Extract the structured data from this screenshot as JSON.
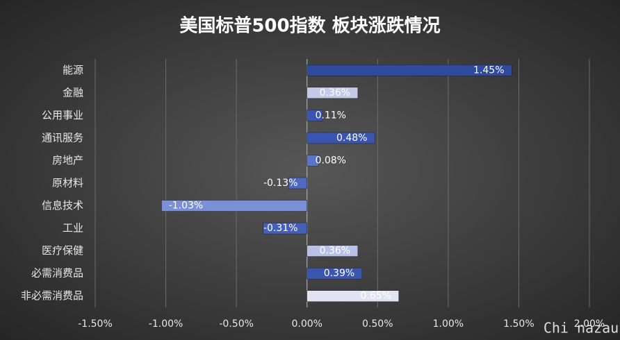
{
  "chart_data": {
    "type": "hbar",
    "title": "美国标普500指数 板块涨跌情况",
    "categories": [
      "能源",
      "金融",
      "公用事业",
      "通讯服务",
      "房地产",
      "原材料",
      "信息技术",
      "工业",
      "医疗保健",
      "必需消费品",
      "非必需消费品"
    ],
    "values": [
      1.45,
      0.36,
      0.11,
      0.48,
      0.08,
      -0.13,
      -1.03,
      -0.31,
      0.36,
      0.39,
      0.65
    ],
    "value_labels": [
      "1.45%",
      "0.36%",
      "0.11%",
      "0.48%",
      "0.08%",
      "-0.13%",
      "-1.03%",
      "-0.31%",
      "0.36%",
      "0.39%",
      "0.65%"
    ],
    "colors": [
      "#2e4a9e",
      "#c3c9e6",
      "#3a55b0",
      "#3a55b0",
      "#5a74c8",
      "#5068c0",
      "#7b8fd6",
      "#4660b8",
      "#b9c1e6",
      "#3b56ae",
      "#e0e3f2"
    ],
    "xlim": [
      -1.5,
      2.0
    ],
    "xticks": [
      {
        "value": -1.5,
        "label": "-1.50%"
      },
      {
        "value": -1.0,
        "label": "-1.00%"
      },
      {
        "value": -0.5,
        "label": "-0.50%"
      },
      {
        "value": 0,
        "label": "0.00%"
      },
      {
        "value": 0.5,
        "label": "0.50%"
      },
      {
        "value": 1.0,
        "label": "1.00%"
      },
      {
        "value": 1.5,
        "label": "1.50%"
      },
      {
        "value": 2.0,
        "label": "2.00%"
      }
    ],
    "grid": true,
    "watermark": "Chi nazau"
  }
}
